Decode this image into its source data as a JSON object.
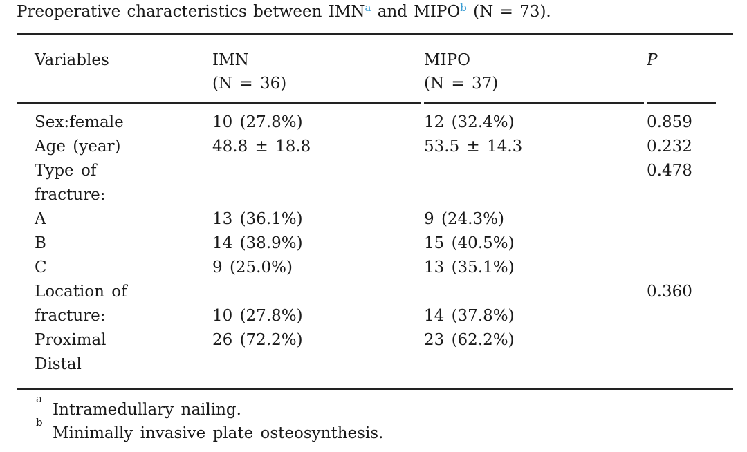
{
  "title": {
    "prefix": "Preoperative characteristics between IMN",
    "sup_a": "a",
    "mid": " and MIPO",
    "sup_b": "b",
    "suffix": " (N = 73)."
  },
  "table": {
    "header": {
      "variables": "Variables",
      "imn_line1": "IMN",
      "imn_line2": "(N = 36)",
      "mipo_line1": "MIPO",
      "mipo_line2": "(N = 37)",
      "p": "P"
    },
    "rows": [
      {
        "variable": "Sex:female",
        "imn": "10 (27.8%)",
        "mipo": "12 (32.4%)",
        "p": "0.859"
      },
      {
        "variable": "Age (year)",
        "imn": "48.8 ± 18.8",
        "mipo": "53.5 ± 14.3",
        "p": "0.232"
      },
      {
        "variable": "Type of",
        "imn": "",
        "mipo": "",
        "p": "0.478"
      },
      {
        "variable": "fracture:",
        "imn": "",
        "mipo": "",
        "p": ""
      },
      {
        "variable": "A",
        "imn": "13 (36.1%)",
        "mipo": "9 (24.3%)",
        "p": ""
      },
      {
        "variable": "B",
        "imn": "14 (38.9%)",
        "mipo": "15 (40.5%)",
        "p": ""
      },
      {
        "variable": "C",
        "imn": "9 (25.0%)",
        "mipo": "13 (35.1%)",
        "p": ""
      },
      {
        "variable": "Location of",
        "imn": "",
        "mipo": "",
        "p": "0.360"
      },
      {
        "variable": "fracture:",
        "imn": "10 (27.8%)",
        "mipo": "14 (37.8%)",
        "p": ""
      },
      {
        "variable": "Proximal",
        "imn": "26 (72.2%)",
        "mipo": "23 (62.2%)",
        "p": ""
      },
      {
        "variable": "Distal",
        "imn": "",
        "mipo": "",
        "p": ""
      }
    ]
  },
  "footnotes": [
    {
      "marker": "a",
      "text": "Intramedullary nailing."
    },
    {
      "marker": "b",
      "text": "Minimally invasive plate osteosynthesis."
    }
  ],
  "colors": {
    "text": "#1a1a1a",
    "rule": "#222222",
    "footnote_ref_blue": "#3f9fd4"
  }
}
